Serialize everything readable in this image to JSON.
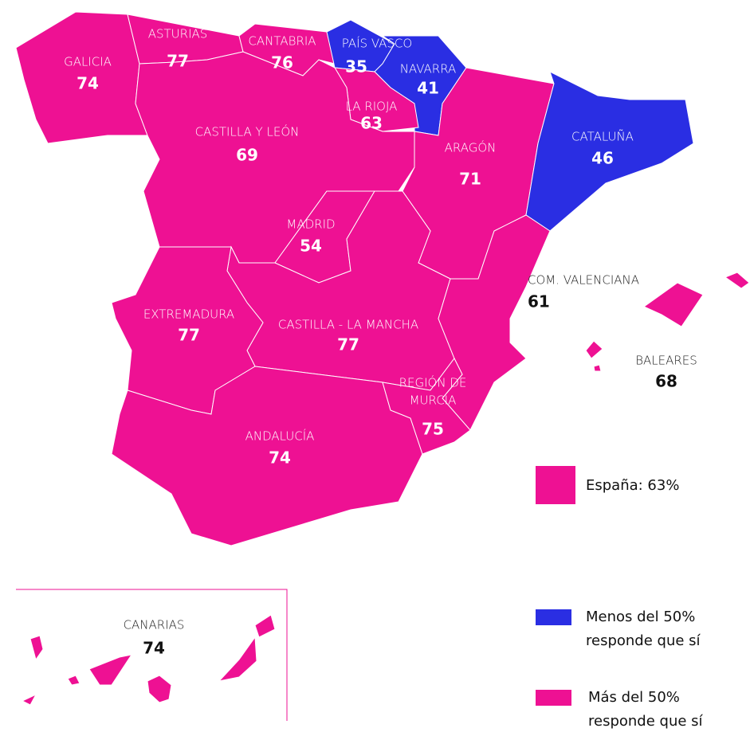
{
  "regions": [
    {
      "name": "GALICIA",
      "value": 74,
      "color": "#ee1193"
    },
    {
      "name": "ASTURIAS",
      "value": 77,
      "color": "#ee1193"
    },
    {
      "name": "CANTABRIA",
      "value": 76,
      "color": "#ee1193"
    },
    {
      "name": "PAÍS VASCO",
      "value": 35,
      "color": "#2a2ee3"
    },
    {
      "name": "NAVARRA",
      "value": 41,
      "color": "#2a2ee3"
    },
    {
      "name": "LA RIOJA",
      "value": 63,
      "color": "#ee1193"
    },
    {
      "name": "CASTILLA Y LEÓN",
      "value": 69,
      "color": "#ee1193"
    },
    {
      "name": "ARAGÓN",
      "value": 71,
      "color": "#ee1193"
    },
    {
      "name": "CATALUÑA",
      "value": 46,
      "color": "#2a2ee3"
    },
    {
      "name": "MADRID",
      "value": 54,
      "color": "#ee1193"
    },
    {
      "name": "CASTILLA - LA MANCHA",
      "value": 77,
      "color": "#ee1193"
    },
    {
      "name": "EXTREMADURA",
      "value": 77,
      "color": "#ee1193"
    },
    {
      "name": "ANDALUCÍA",
      "value": 74,
      "color": "#ee1193"
    },
    {
      "name": "COM. VALENCIANA",
      "value": 61,
      "color": "#ee1193"
    },
    {
      "name": [
        "REGIÓN DE",
        "MURCIA"
      ],
      "value": 75,
      "color": "#ee1193"
    },
    {
      "name": "BALEARES",
      "value": 68,
      "color": "#ee1193"
    },
    {
      "name": "CANARIAS",
      "value": 74,
      "color": "#ee1193"
    }
  ],
  "legend": {
    "total": {
      "label": "España: 63%",
      "color": "#ee1193"
    },
    "items": [
      {
        "label": [
          "Menos del 50%",
          "responde que sí"
        ],
        "color": "#2a2ee3"
      },
      {
        "label": [
          "Más del 50%",
          "responde que sí"
        ],
        "color": "#ee1193"
      }
    ]
  }
}
